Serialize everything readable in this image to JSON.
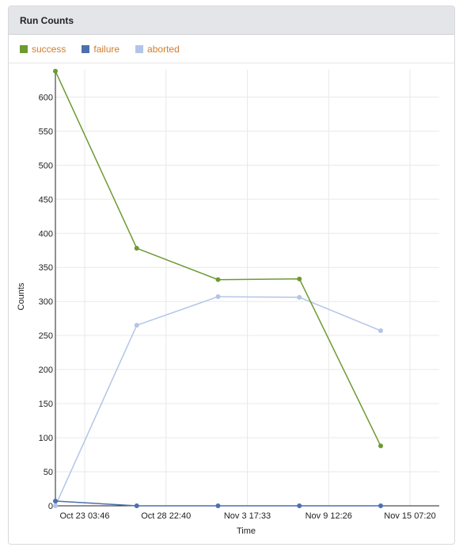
{
  "panel": {
    "title": "Run Counts"
  },
  "chart_data": {
    "type": "line",
    "title": "",
    "xlabel": "Time",
    "ylabel": "Counts",
    "x_tick_labels": [
      "Oct 23 03:46",
      "Oct 28 22:40",
      "Nov 3 17:33",
      "Nov 9 12:26",
      "Nov 15 07:20"
    ],
    "x_tick_positions": [
      0.3,
      5.3,
      10.3,
      15.3,
      20.3
    ],
    "x_range": [
      -1.5,
      22.1
    ],
    "x": [
      -1.5,
      3.5,
      8.5,
      13.5,
      18.5
    ],
    "ylim": [
      0,
      640
    ],
    "y_ticks": [
      0,
      50,
      100,
      150,
      200,
      250,
      300,
      350,
      400,
      450,
      500,
      550,
      600
    ],
    "grid": true,
    "legend_position": "top-left",
    "series": [
      {
        "name": "success",
        "color": "#6d9a33",
        "values": [
          638,
          378,
          332,
          333,
          88
        ]
      },
      {
        "name": "failure",
        "color": "#4e6fae",
        "values": [
          7,
          0,
          0,
          0,
          0
        ]
      },
      {
        "name": "aborted",
        "color": "#b3c5e6",
        "values": [
          0,
          265,
          307,
          306,
          257
        ]
      }
    ]
  }
}
